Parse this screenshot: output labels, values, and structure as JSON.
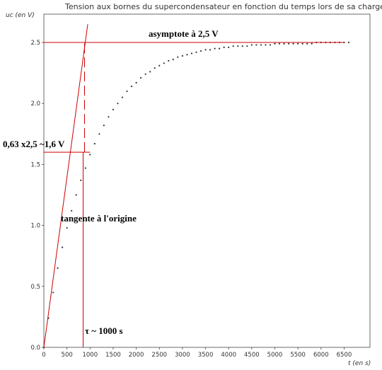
{
  "chart_data": {
    "type": "scatter",
    "title": "Tension aux bornes du supercondensateur en fonction du temps lors de sa charge",
    "xlabel": "t (en s)",
    "ylabel": "uᴄ (en V)",
    "xlim": [
      0,
      7000
    ],
    "ylim": [
      0,
      2.7
    ],
    "x_ticks": [
      "0",
      "500",
      "1000",
      "1500",
      "2000",
      "2500",
      "3000",
      "3500",
      "4000",
      "4500",
      "5000",
      "5500",
      "6000",
      "6500"
    ],
    "y_ticks": [
      "0.0",
      "0.5",
      "1.0",
      "1.5",
      "2.0",
      "2.5"
    ],
    "grid": false,
    "series": [
      {
        "name": "",
        "x": [
          0,
          100,
          200,
          300,
          400,
          500,
          600,
          700,
          800,
          900,
          1000,
          1100,
          1200,
          1300,
          1400,
          1500,
          1600,
          1700,
          1800,
          1900,
          2000,
          2100,
          2200,
          2300,
          2400,
          2500,
          2600,
          2700,
          2800,
          2900,
          3000,
          3100,
          3200,
          3300,
          3400,
          3500,
          3600,
          3700,
          3800,
          3900,
          4000,
          4100,
          4200,
          4300,
          4400,
          4500,
          4600,
          4700,
          4800,
          4900,
          5000,
          5100,
          5200,
          5300,
          5400,
          5500,
          5600,
          5700,
          5800,
          5900,
          6000,
          6100,
          6200,
          6300,
          6400,
          6500,
          6600
        ],
        "y": [
          0.0,
          0.24,
          0.45,
          0.65,
          0.82,
          0.98,
          1.12,
          1.25,
          1.37,
          1.47,
          1.58,
          1.67,
          1.75,
          1.82,
          1.89,
          1.95,
          2.0,
          2.05,
          2.1,
          2.14,
          2.17,
          2.21,
          2.24,
          2.26,
          2.29,
          2.31,
          2.33,
          2.35,
          2.36,
          2.38,
          2.39,
          2.4,
          2.41,
          2.42,
          2.43,
          2.44,
          2.44,
          2.45,
          2.45,
          2.46,
          2.46,
          2.47,
          2.47,
          2.47,
          2.47,
          2.48,
          2.48,
          2.48,
          2.48,
          2.48,
          2.49,
          2.49,
          2.49,
          2.49,
          2.49,
          2.49,
          2.49,
          2.49,
          2.49,
          2.5,
          2.5,
          2.5,
          2.5,
          2.5,
          2.5,
          2.5,
          2.5
        ]
      }
    ],
    "annotations": {
      "asymptote": {
        "text": "asymptote à 2,5 V",
        "y": 2.5,
        "x_start": 0,
        "x_end": 6500
      },
      "tangent": {
        "text": "tangente à l'origine",
        "x0": 0,
        "y0": 0,
        "x1": 950,
        "y1": 2.65
      },
      "level_063": {
        "text": "0,63 x2,5 ~1,6 V",
        "y": 1.6,
        "x_start": 0,
        "x_end": 1000
      },
      "tau": {
        "text": "τ ~ 1000 s",
        "x": 850
      }
    },
    "line_color": "#cc0000",
    "point_color": "#333333"
  }
}
